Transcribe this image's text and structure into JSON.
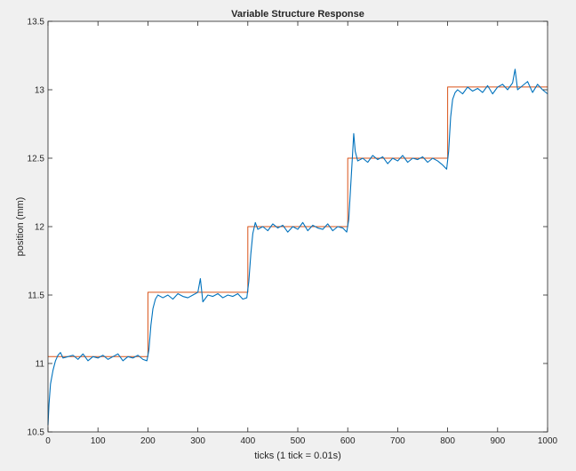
{
  "chart_data": {
    "type": "line",
    "title": "Variable Structure Response",
    "xlabel": "ticks (1 tick = 0.01s)",
    "ylabel": "position (mm)",
    "xlim": [
      0,
      1000
    ],
    "ylim": [
      10.5,
      13.5
    ],
    "xticks": [
      0,
      100,
      200,
      300,
      400,
      500,
      600,
      700,
      800,
      900,
      1000
    ],
    "xtick_labels": [
      "0",
      "100",
      "200",
      "300",
      "400",
      "500",
      "600",
      "700",
      "800",
      "900",
      "1000"
    ],
    "yticks": [
      10.5,
      11,
      11.5,
      12,
      12.5,
      13,
      13.5
    ],
    "ytick_labels": [
      "10.5",
      "11",
      "11.5",
      "12",
      "12.5",
      "13",
      "13.5"
    ],
    "grid": false,
    "series": [
      {
        "color": "#d95319",
        "x": [
          0,
          200,
          200,
          400,
          400,
          600,
          600,
          800,
          800,
          1000
        ],
        "y": [
          11.05,
          11.05,
          11.52,
          11.52,
          12.0,
          12.0,
          12.5,
          12.5,
          13.02,
          13.02
        ]
      },
      {
        "color": "#0072bd",
        "x": [
          0,
          2,
          5,
          10,
          15,
          20,
          25,
          30,
          40,
          50,
          60,
          70,
          80,
          90,
          100,
          110,
          120,
          130,
          140,
          150,
          160,
          170,
          180,
          190,
          198,
          202,
          206,
          210,
          215,
          220,
          230,
          240,
          250,
          260,
          270,
          280,
          290,
          300,
          305,
          310,
          320,
          330,
          340,
          350,
          360,
          370,
          380,
          390,
          398,
          402,
          406,
          410,
          415,
          420,
          430,
          440,
          450,
          460,
          470,
          480,
          490,
          500,
          510,
          520,
          530,
          540,
          550,
          560,
          570,
          580,
          590,
          598,
          602,
          606,
          610,
          612,
          615,
          620,
          630,
          640,
          650,
          660,
          670,
          680,
          690,
          700,
          710,
          720,
          730,
          740,
          750,
          760,
          770,
          780,
          790,
          798,
          802,
          806,
          810,
          815,
          820,
          830,
          840,
          850,
          860,
          870,
          880,
          890,
          900,
          910,
          920,
          930,
          935,
          940,
          950,
          960,
          970,
          980,
          990,
          1000
        ],
        "y": [
          10.55,
          10.7,
          10.85,
          10.95,
          11.02,
          11.06,
          11.08,
          11.04,
          11.05,
          11.06,
          11.03,
          11.07,
          11.02,
          11.05,
          11.04,
          11.06,
          11.03,
          11.05,
          11.07,
          11.02,
          11.05,
          11.04,
          11.06,
          11.03,
          11.02,
          11.1,
          11.28,
          11.4,
          11.47,
          11.5,
          11.48,
          11.5,
          11.47,
          11.51,
          11.49,
          11.48,
          11.5,
          11.52,
          11.62,
          11.45,
          11.5,
          11.49,
          11.51,
          11.48,
          11.5,
          11.49,
          11.51,
          11.47,
          11.48,
          11.6,
          11.8,
          11.95,
          12.03,
          11.98,
          12.0,
          11.97,
          12.02,
          11.99,
          12.01,
          11.96,
          12.0,
          11.98,
          12.03,
          11.97,
          12.01,
          11.99,
          11.98,
          12.02,
          11.97,
          12.0,
          11.99,
          11.96,
          12.05,
          12.3,
          12.55,
          12.68,
          12.55,
          12.48,
          12.5,
          12.47,
          12.52,
          12.49,
          12.51,
          12.46,
          12.5,
          12.48,
          12.52,
          12.47,
          12.5,
          12.49,
          12.51,
          12.47,
          12.5,
          12.48,
          12.45,
          12.42,
          12.55,
          12.8,
          12.93,
          12.98,
          13.0,
          12.97,
          13.02,
          12.99,
          13.01,
          12.98,
          13.03,
          12.97,
          13.02,
          13.04,
          13.0,
          13.05,
          13.15,
          13.0,
          13.03,
          13.06,
          12.98,
          13.04,
          13.0,
          12.97
        ]
      }
    ]
  }
}
